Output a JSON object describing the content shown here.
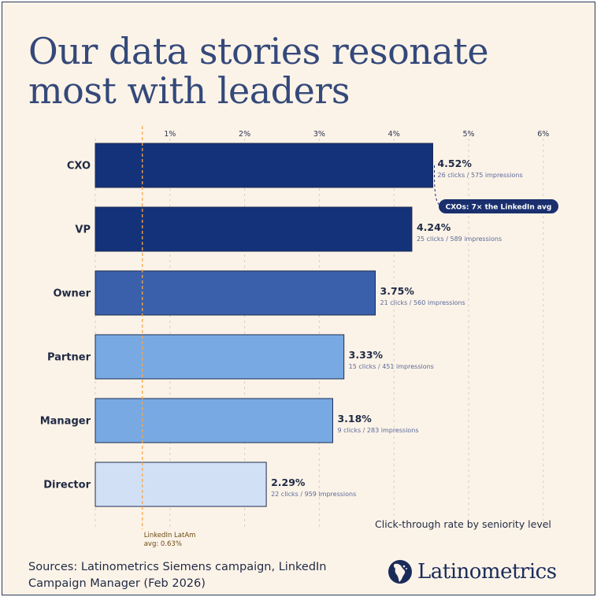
{
  "title": "Our data stories resonate most with leaders",
  "subtitle": "Click-through rate by seniority level",
  "sources_label": "Sources:",
  "sources_text": " Latinometrics Siemens campaign, LinkedIn Campaign Manager (Feb 2026)",
  "brand": {
    "name": "Latinometrics",
    "logo_icon": "americas-map-icon"
  },
  "colors": {
    "background": "#fcf3e8",
    "title": "#34497a",
    "reference_line": "#f3a94f",
    "callout": "#1a2f6e"
  },
  "callout": {
    "label": "CXOs: 7× the LinkedIn avg",
    "target": "CXO"
  },
  "chart_data": {
    "type": "bar",
    "orientation": "horizontal",
    "title": "Click-through rate by seniority level",
    "xlabel": "",
    "ylabel": "",
    "xlim": [
      0,
      6.4
    ],
    "x_ticks": [
      1,
      2,
      3,
      4,
      5,
      6
    ],
    "x_tick_labels": [
      "1%",
      "2%",
      "3%",
      "4%",
      "5%",
      "6%"
    ],
    "grid": "vertical dashed",
    "legend": "none",
    "categories": [
      "CXO",
      "VP",
      "Owner",
      "Partner",
      "Manager",
      "Director"
    ],
    "values": [
      4.52,
      4.24,
      3.75,
      3.33,
      3.18,
      2.29
    ],
    "value_labels": [
      "4.52%",
      "4.24%",
      "3.75%",
      "3.33%",
      "3.18%",
      "2.29%"
    ],
    "details": [
      "26 clicks / 575 impressions",
      "25 clicks / 589 impressions",
      "21 clicks / 560 impressions",
      "15 clicks / 451 impressions",
      "9 clicks / 283 impressions",
      "22 clicks / 959 impressions"
    ],
    "bar_colors": [
      "#143279",
      "#143279",
      "#3a60ab",
      "#78a9e3",
      "#78a9e3",
      "#d1e0f5"
    ],
    "reference_line": {
      "value": 0.63,
      "label_line1": "LinkedIn LatAm",
      "label_line2": "avg: 0.63%"
    }
  }
}
